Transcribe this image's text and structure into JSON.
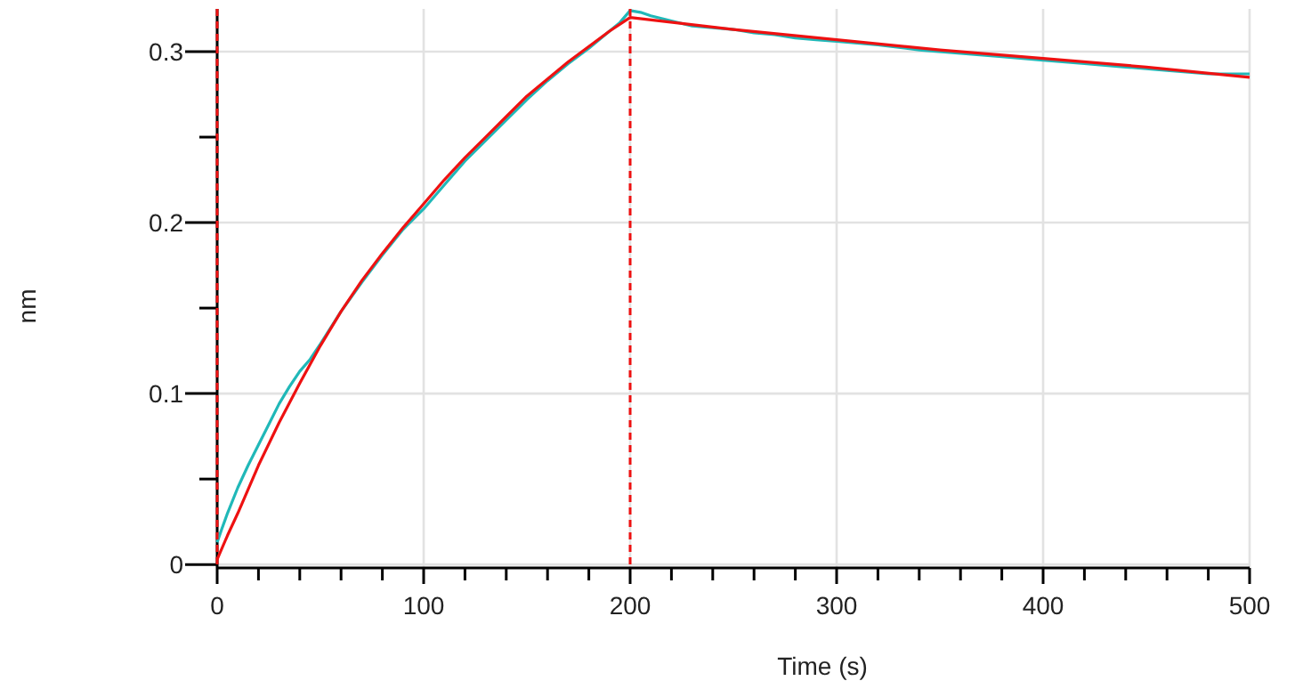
{
  "chart_data": {
    "type": "line",
    "xlabel": "Time (s)",
    "ylabel": "nm",
    "xlim": [
      0,
      500
    ],
    "ylim": [
      -0.002,
      0.325
    ],
    "xticks": [
      0,
      {
        "value": 20,
        "label": null
      },
      {
        "value": 40,
        "label": null
      },
      {
        "value": 60,
        "label": null
      },
      {
        "value": 80,
        "label": null
      },
      100,
      {
        "value": 120,
        "label": null
      },
      {
        "value": 140,
        "label": null
      },
      {
        "value": 160,
        "label": null
      },
      {
        "value": 180,
        "label": null
      },
      200,
      {
        "value": 220,
        "label": null
      },
      {
        "value": 240,
        "label": null
      },
      {
        "value": 260,
        "label": null
      },
      {
        "value": 280,
        "label": null
      },
      300,
      {
        "value": 320,
        "label": null
      },
      {
        "value": 340,
        "label": null
      },
      {
        "value": 360,
        "label": null
      },
      {
        "value": 380,
        "label": null
      },
      400,
      {
        "value": 420,
        "label": null
      },
      {
        "value": 440,
        "label": null
      },
      {
        "value": 460,
        "label": null
      },
      {
        "value": 480,
        "label": null
      },
      500
    ],
    "yticks": [
      0,
      {
        "value": 0.05,
        "label": null
      },
      0.1,
      {
        "value": 0.15,
        "label": null
      },
      0.2,
      {
        "value": 0.25,
        "label": null
      },
      0.3
    ],
    "grid": true,
    "line_style": "solid",
    "marker": "none",
    "series": [
      {
        "color": "#20b8b8",
        "x": [
          0,
          2,
          5,
          10,
          15,
          20,
          25,
          30,
          35,
          40,
          45,
          50,
          60,
          70,
          80,
          90,
          100,
          110,
          120,
          130,
          140,
          150,
          160,
          170,
          180,
          190,
          195,
          200,
          205,
          210,
          220,
          230,
          240,
          250,
          260,
          270,
          280,
          290,
          300,
          320,
          340,
          360,
          380,
          400,
          420,
          440,
          460,
          480,
          500
        ],
        "values": [
          0.013,
          0.02,
          0.03,
          0.045,
          0.058,
          0.07,
          0.082,
          0.094,
          0.104,
          0.113,
          0.12,
          0.129,
          0.148,
          0.165,
          0.181,
          0.196,
          0.208,
          0.222,
          0.236,
          0.248,
          0.26,
          0.272,
          0.283,
          0.293,
          0.302,
          0.312,
          0.317,
          0.324,
          0.323,
          0.321,
          0.318,
          0.315,
          0.314,
          0.313,
          0.311,
          0.31,
          0.308,
          0.307,
          0.306,
          0.304,
          0.301,
          0.299,
          0.297,
          0.295,
          0.293,
          0.291,
          0.289,
          0.287,
          0.287
        ]
      },
      {
        "color": "#ee1111",
        "x": [
          0,
          5,
          10,
          20,
          30,
          40,
          50,
          60,
          70,
          80,
          90,
          100,
          110,
          120,
          130,
          140,
          150,
          160,
          170,
          180,
          190,
          200,
          250,
          300,
          350,
          400,
          450,
          500
        ],
        "values": [
          0.003,
          0.017,
          0.03,
          0.058,
          0.083,
          0.106,
          0.128,
          0.148,
          0.166,
          0.182,
          0.197,
          0.211,
          0.225,
          0.238,
          0.25,
          0.262,
          0.274,
          0.284,
          0.294,
          0.303,
          0.312,
          0.32,
          0.313,
          0.307,
          0.301,
          0.296,
          0.291,
          0.285
        ]
      }
    ],
    "ref_lines": [
      {
        "axis": "x",
        "value": 0,
        "color": "#ee1111",
        "line_style": "dashed"
      },
      {
        "axis": "x",
        "value": 200,
        "color": "#ee1111",
        "line_style": "dashed"
      }
    ]
  }
}
